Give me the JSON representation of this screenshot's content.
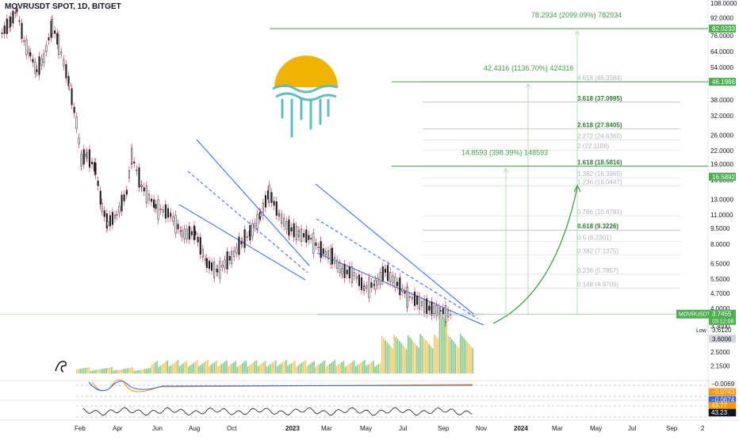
{
  "header": {
    "symbol": "MOVRUSDT SPOT, 1D, BITGET"
  },
  "colors": {
    "up": "#26a69a",
    "down": "#ef5350",
    "candle": "#1e1e1e",
    "wick": "#c2185b",
    "channel": "#2962ff",
    "fib": "#4caf50",
    "fib_faint": "#b0b4bc",
    "projection": "#43a047",
    "price_box": "#4caf50",
    "vol_green": "#66bb6a",
    "vol_orange": "#f6b93b",
    "sun": "#f0b400",
    "waves": "#5fbcc0",
    "macd": "#ff9800",
    "signal": "#2962ff"
  },
  "chart_data": {
    "type": "candlestick",
    "y_scale": "log",
    "x_ticks": [
      "Feb",
      "Apr",
      "Jun",
      "Aug",
      "Oct",
      "2023",
      "Mar",
      "May",
      "Jul",
      "Sep",
      "Nov",
      "2024",
      "Mar",
      "May",
      "Jul",
      "Sep",
      "2"
    ],
    "y_ticks": [
      108,
      92,
      76,
      64,
      54,
      46,
      38,
      32,
      26,
      22,
      19,
      16,
      13,
      11,
      9.5,
      8,
      6.5,
      5.5,
      4.7,
      4,
      3.3,
      2.5,
      2.15
    ],
    "price_labels": [
      {
        "label": "82.0233",
        "value": 82.0233
      },
      {
        "label": "46.1986",
        "value": 46.1986
      },
      {
        "label": "16.5892",
        "value": 16.5892
      },
      {
        "label": "MOVRUSDT",
        "value": 3.7455,
        "text": "3.7455",
        "sub": "03:12:08"
      },
      {
        "label": "Low",
        "value": 3.612,
        "text": "3.6120"
      },
      {
        "label": "3.6006",
        "value": 3.6006
      }
    ],
    "fib_levels": [
      {
        "label": "4.618 (46.3584)",
        "value": 46.3584,
        "strong": false
      },
      {
        "label": "3.618 (37.0995)",
        "value": 37.0995,
        "strong": true
      },
      {
        "label": "2.618 (27.8405)",
        "value": 27.8405,
        "strong": true
      },
      {
        "label": "2.272 (24.6360)",
        "value": 24.636,
        "strong": false
      },
      {
        "label": "2 (22.1186)",
        "value": 22.1186,
        "strong": false
      },
      {
        "label": "1.618 (18.5816)",
        "value": 18.5816,
        "strong": true
      },
      {
        "label": "1.382 (16.3965)",
        "value": 16.3965,
        "strong": false
      },
      {
        "label": "1.236 (15.0447)",
        "value": 15.0447,
        "strong": false
      },
      {
        "label": "0.786 (10.8781)",
        "value": 10.8781,
        "strong": false
      },
      {
        "label": "0.618 (9.3226)",
        "value": 9.3226,
        "strong": true
      },
      {
        "label": "0.5 (8.2301)",
        "value": 8.2301,
        "strong": false
      },
      {
        "label": "0.382 (7.1375)",
        "value": 7.1375,
        "strong": false
      },
      {
        "label": "0.236 (5.7857)",
        "value": 5.7857,
        "strong": false
      },
      {
        "label": "0.148 (4.9709)",
        "value": 4.9709,
        "strong": false
      }
    ],
    "projections": [
      {
        "label": "78.2934 (2099.09%) 782934",
        "target": 82.0233
      },
      {
        "label": "42.4316 (1136.70%) 424316",
        "target": 46.1986
      },
      {
        "label": "14.8593 (398.39%) 148593",
        "target": 18.5816
      }
    ],
    "indicator_values": [
      {
        "label": "−0.0069",
        "color": "#ffffff",
        "text_color": "#131722"
      },
      {
        "label": "−0.0743",
        "color": "#ff9800",
        "text_color": "#ffffff"
      },
      {
        "label": "−0.0674",
        "color": "#2962ff",
        "text_color": "#ffffff"
      },
      {
        "label": "43.77",
        "color": "#ff9800",
        "text_color": "#ffffff"
      },
      {
        "label": "43.23",
        "color": "#131722",
        "text_color": "#ffffff"
      }
    ],
    "price_path": [
      [
        "2022-01-20",
        78
      ],
      [
        "2022-02-01",
        88
      ],
      [
        "2022-02-10",
        100
      ],
      [
        "2022-02-20",
        72
      ],
      [
        "2022-03-01",
        62
      ],
      [
        "2022-03-10",
        52
      ],
      [
        "2022-03-20",
        60
      ],
      [
        "2022-04-01",
        85
      ],
      [
        "2022-04-10",
        70
      ],
      [
        "2022-04-25",
        45
      ],
      [
        "2022-05-05",
        30
      ],
      [
        "2022-05-12",
        20
      ],
      [
        "2022-05-20",
        21
      ],
      [
        "2022-06-01",
        18
      ],
      [
        "2022-06-10",
        12
      ],
      [
        "2022-06-18",
        10
      ],
      [
        "2022-07-01",
        11
      ],
      [
        "2022-07-15",
        14
      ],
      [
        "2022-07-22",
        21
      ],
      [
        "2022-08-05",
        15
      ],
      [
        "2022-08-25",
        12
      ],
      [
        "2022-09-15",
        11
      ],
      [
        "2022-10-01",
        9
      ],
      [
        "2022-10-20",
        9
      ],
      [
        "2022-11-05",
        6.5
      ],
      [
        "2022-11-20",
        6
      ],
      [
        "2022-12-10",
        7
      ],
      [
        "2022-12-25",
        8.2
      ],
      [
        "2023-01-05",
        9
      ],
      [
        "2023-01-20",
        11
      ],
      [
        "2023-02-01",
        14
      ],
      [
        "2023-02-15",
        11
      ],
      [
        "2023-03-01",
        9.5
      ],
      [
        "2023-03-15",
        9
      ],
      [
        "2023-04-01",
        8.5
      ],
      [
        "2023-04-15",
        7.5
      ],
      [
        "2023-05-01",
        7
      ],
      [
        "2023-05-15",
        6
      ],
      [
        "2023-06-01",
        5.8
      ],
      [
        "2023-06-15",
        5
      ],
      [
        "2023-07-01",
        5.2
      ],
      [
        "2023-07-15",
        6
      ],
      [
        "2023-08-01",
        5.2
      ],
      [
        "2023-08-15",
        4.6
      ],
      [
        "2023-09-01",
        4.3
      ],
      [
        "2023-09-15",
        4.0
      ],
      [
        "2023-10-01",
        3.9
      ],
      [
        "2023-10-15",
        3.75
      ]
    ]
  }
}
